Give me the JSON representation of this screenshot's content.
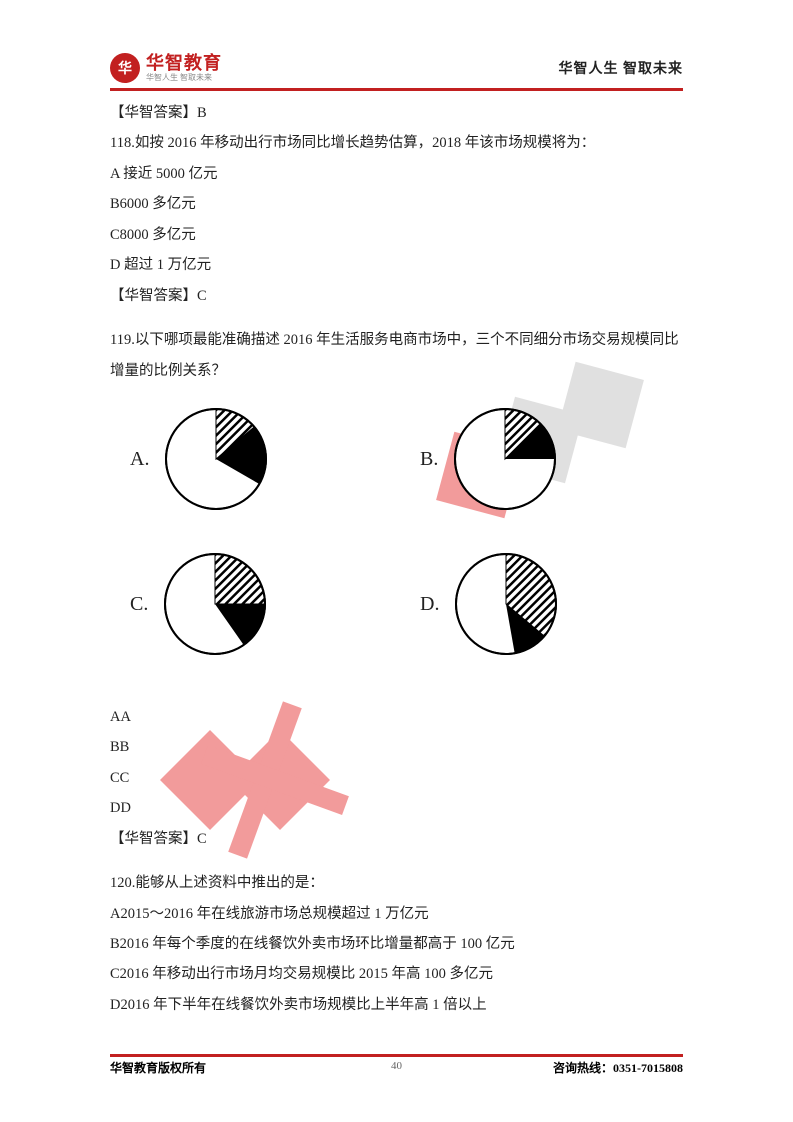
{
  "header": {
    "logo_char": "华",
    "logo_main": "华智教育",
    "logo_sub": "华智人生 智取未来",
    "right_text": "华智人生 智取未来"
  },
  "colors": {
    "brand_red": "#c22020",
    "text": "#222222",
    "sub_text": "#888888",
    "watermark_red": "#e84a4a",
    "watermark_gray": "#c8c8c8",
    "background": "#ffffff",
    "pie_stroke": "#000000",
    "pie_fill_black": "#000000"
  },
  "body": {
    "ans117": "【华智答案】B",
    "q118": "118.如按 2016 年移动出行市场同比增长趋势估算，2018 年该市场规模将为：",
    "q118_a": "A 接近 5000 亿元",
    "q118_b": "B6000 多亿元",
    "q118_c": "C8000 多亿元",
    "q118_d": "D 超过 1 万亿元",
    "ans118": "【华智答案】C",
    "q119": "119.以下哪项最能准确描述 2016 年生活服务电商市场中，三个不同细分市场交易规模同比增量的比例关系？",
    "aa": "AA",
    "bb": "BB",
    "cc": "CC",
    "dd": "DD",
    "ans119": "【华智答案】C",
    "q120": "120.能够从上述资料中推出的是：",
    "q120_a": "A2015～2016 年在线旅游市场总规模超过 1 万亿元",
    "q120_b": "B2016 年每个季度的在线餐饮外卖市场环比增量都高于 100 亿元",
    "q120_c": "C2016 年移动出行市场月均交易规模比 2015 年高 100 多亿元",
    "q120_d": "D2016 年下半年在线餐饮外卖市场规模比上半年高 1 倍以上"
  },
  "pies": {
    "labels": {
      "A": "A.",
      "B": "B.",
      "C": "C.",
      "D": "D."
    },
    "radius": 50,
    "stroke_width": 2,
    "A": {
      "hatch_deg": 50,
      "black_deg": 70
    },
    "B": {
      "hatch_deg": 45,
      "black_deg": 45
    },
    "C": {
      "hatch_deg": 90,
      "black_deg": 55
    },
    "D": {
      "hatch_deg": 130,
      "black_deg": 40
    }
  },
  "footer": {
    "left": "华智教育版权所有",
    "right": "咨询热线：0351-7015808",
    "page": "40"
  }
}
